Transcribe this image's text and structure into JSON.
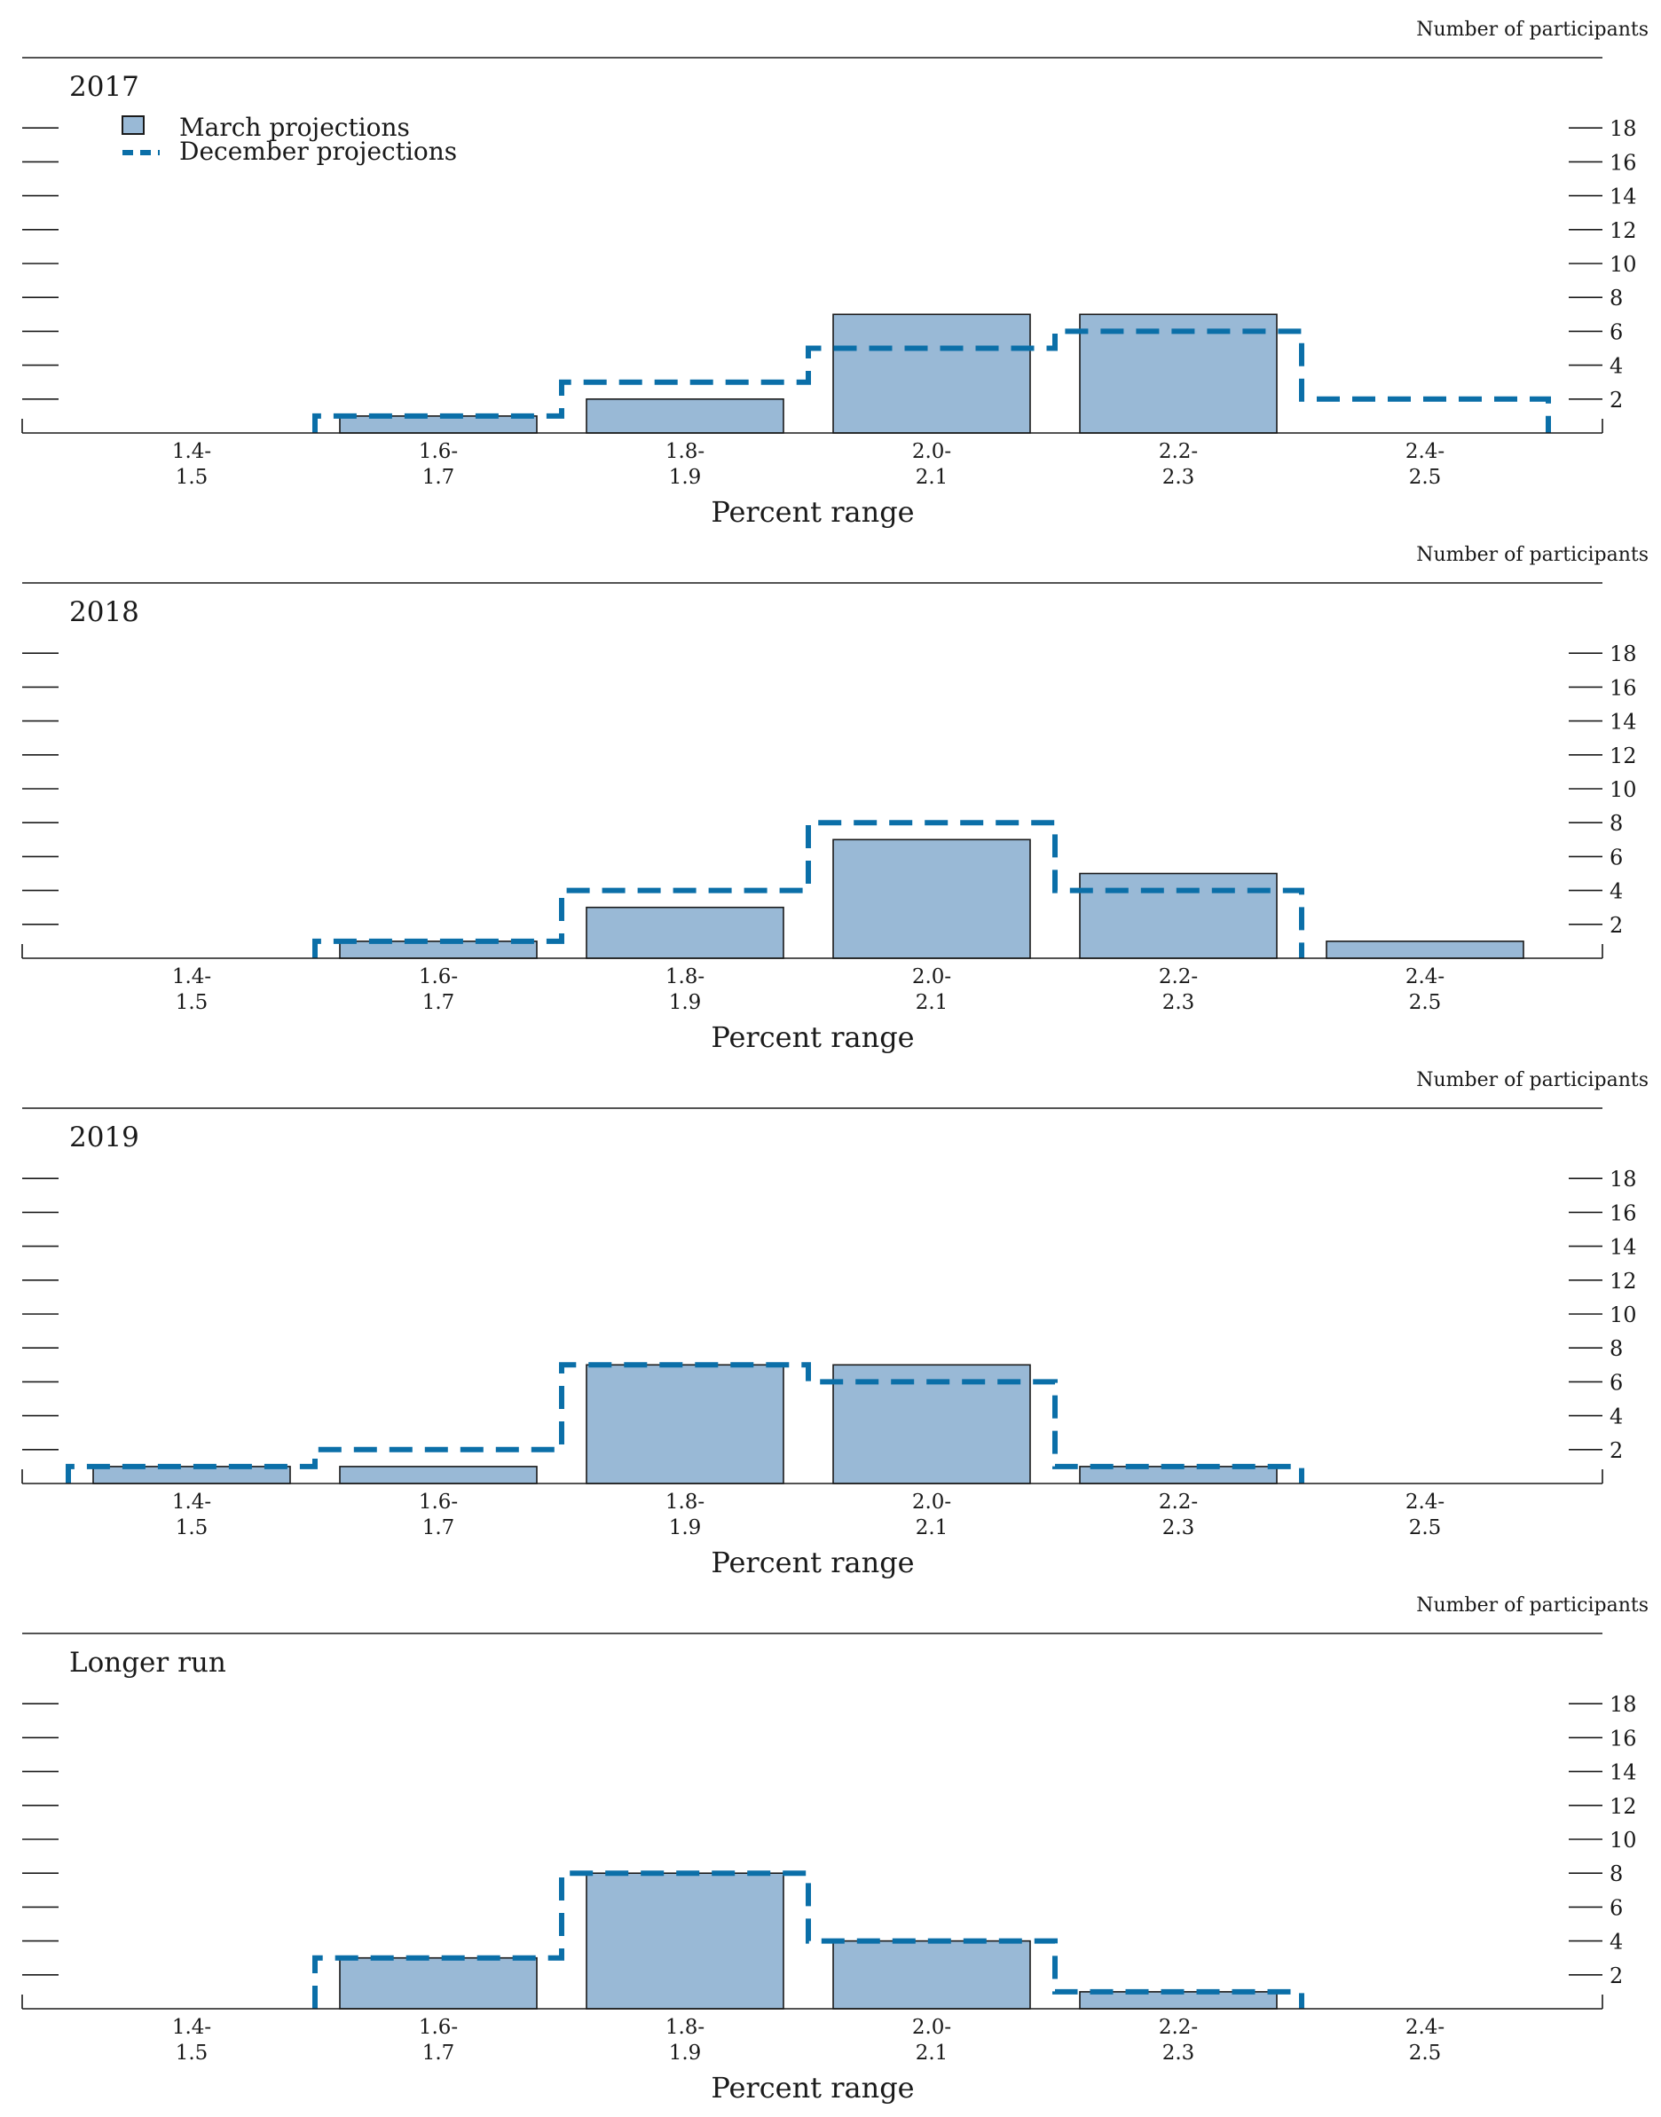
{
  "figure": {
    "unit_label": "Number of participants",
    "legend": [
      {
        "label": "March projections",
        "style": "bar",
        "color": "#99b9d6"
      },
      {
        "label": "December projections",
        "style": "dashed-line",
        "color": "#0b6fa8"
      }
    ],
    "colors": {
      "bar_fill": "#99b9d6",
      "bar_stroke": "#1a1a1a",
      "dashed_line": "#0b6fa8",
      "axis": "#1a1a1a"
    }
  },
  "chart_data": [
    {
      "type": "bar",
      "title": "2017",
      "unit_label": "Number of participants",
      "xlabel": "Percent range",
      "categories": [
        "1.4-\n1.5",
        "1.6-\n1.7",
        "1.8-\n1.9",
        "2.0-\n2.1",
        "2.2-\n2.3",
        "2.4-\n2.5"
      ],
      "category_lines": [
        [
          "1.4-",
          "1.5"
        ],
        [
          "1.6-",
          "1.7"
        ],
        [
          "1.8-",
          "1.9"
        ],
        [
          "2.0-",
          "2.1"
        ],
        [
          "2.2-",
          "2.3"
        ],
        [
          "2.4-",
          "2.5"
        ]
      ],
      "series": [
        {
          "name": "March projections",
          "style": "bar",
          "values": [
            0,
            1,
            2,
            7,
            7,
            0
          ]
        },
        {
          "name": "December projections",
          "style": "dashed-step",
          "values": [
            0,
            1,
            3,
            5,
            6,
            2
          ]
        }
      ],
      "yticks": [
        2,
        4,
        6,
        8,
        10,
        12,
        14,
        16,
        18
      ],
      "ylim": [
        0,
        18
      ],
      "legend": true
    },
    {
      "type": "bar",
      "title": "2018",
      "unit_label": "Number of participants",
      "xlabel": "Percent range",
      "categories": [
        "1.4-\n1.5",
        "1.6-\n1.7",
        "1.8-\n1.9",
        "2.0-\n2.1",
        "2.2-\n2.3",
        "2.4-\n2.5"
      ],
      "category_lines": [
        [
          "1.4-",
          "1.5"
        ],
        [
          "1.6-",
          "1.7"
        ],
        [
          "1.8-",
          "1.9"
        ],
        [
          "2.0-",
          "2.1"
        ],
        [
          "2.2-",
          "2.3"
        ],
        [
          "2.4-",
          "2.5"
        ]
      ],
      "series": [
        {
          "name": "March projections",
          "style": "bar",
          "values": [
            0,
            1,
            3,
            7,
            5,
            1
          ]
        },
        {
          "name": "December projections",
          "style": "dashed-step",
          "values": [
            0,
            1,
            4,
            8,
            4,
            0
          ]
        }
      ],
      "yticks": [
        2,
        4,
        6,
        8,
        10,
        12,
        14,
        16,
        18
      ],
      "ylim": [
        0,
        18
      ],
      "legend": false
    },
    {
      "type": "bar",
      "title": "2019",
      "unit_label": "Number of participants",
      "xlabel": "Percent range",
      "categories": [
        "1.4-\n1.5",
        "1.6-\n1.7",
        "1.8-\n1.9",
        "2.0-\n2.1",
        "2.2-\n2.3",
        "2.4-\n2.5"
      ],
      "category_lines": [
        [
          "1.4-",
          "1.5"
        ],
        [
          "1.6-",
          "1.7"
        ],
        [
          "1.8-",
          "1.9"
        ],
        [
          "2.0-",
          "2.1"
        ],
        [
          "2.2-",
          "2.3"
        ],
        [
          "2.4-",
          "2.5"
        ]
      ],
      "series": [
        {
          "name": "March projections",
          "style": "bar",
          "values": [
            1,
            1,
            7,
            7,
            1,
            0
          ]
        },
        {
          "name": "December projections",
          "style": "dashed-step",
          "values": [
            1,
            2,
            7,
            6,
            1,
            0
          ]
        }
      ],
      "yticks": [
        2,
        4,
        6,
        8,
        10,
        12,
        14,
        16,
        18
      ],
      "ylim": [
        0,
        18
      ],
      "legend": false
    },
    {
      "type": "bar",
      "title": "Longer run",
      "unit_label": "Number of participants",
      "xlabel": "Percent range",
      "categories": [
        "1.4-\n1.5",
        "1.6-\n1.7",
        "1.8-\n1.9",
        "2.0-\n2.1",
        "2.2-\n2.3",
        "2.4-\n2.5"
      ],
      "category_lines": [
        [
          "1.4-",
          "1.5"
        ],
        [
          "1.6-",
          "1.7"
        ],
        [
          "1.8-",
          "1.9"
        ],
        [
          "2.0-",
          "2.1"
        ],
        [
          "2.2-",
          "2.3"
        ],
        [
          "2.4-",
          "2.5"
        ]
      ],
      "series": [
        {
          "name": "March projections",
          "style": "bar",
          "values": [
            0,
            3,
            8,
            4,
            1,
            0
          ]
        },
        {
          "name": "December projections",
          "style": "dashed-step",
          "values": [
            0,
            3,
            8,
            4,
            1,
            0
          ]
        }
      ],
      "yticks": [
        2,
        4,
        6,
        8,
        10,
        12,
        14,
        16,
        18
      ],
      "ylim": [
        0,
        18
      ],
      "legend": false
    }
  ]
}
